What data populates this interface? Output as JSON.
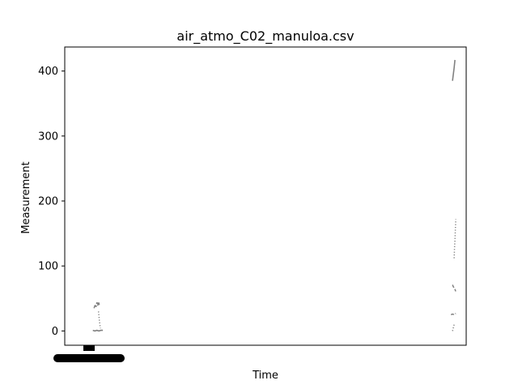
{
  "chart_data": {
    "type": "line",
    "title": "air_atmo_C02_manuloa.csv",
    "xlabel": "Time",
    "ylabel": "Measurement",
    "ylim": [
      -22,
      437
    ],
    "xlim": [
      0,
      1
    ],
    "y_ticks": [
      0,
      100,
      200,
      300,
      400
    ],
    "y_tick_labels": [
      "0",
      "100",
      "200",
      "300",
      "400"
    ],
    "grid": false,
    "legend": "none",
    "series_color": "#808080",
    "series": [
      {
        "x": [
          0.073,
          0.076,
          0.078,
          0.08,
          0.082,
          0.084,
          0.086
        ],
        "y": [
          35,
          41,
          37,
          44,
          39,
          45,
          40
        ],
        "style": "dashed"
      },
      {
        "x": [
          0.07,
          0.075,
          0.08,
          0.085,
          0.09,
          0.095
        ],
        "y": [
          1,
          0,
          1,
          0,
          1,
          1
        ],
        "style": "solid"
      },
      {
        "x": [
          0.084,
          0.085,
          0.086,
          0.087,
          0.088,
          0.089
        ],
        "y": [
          30,
          24,
          17,
          12,
          8,
          4
        ],
        "style": "dotted"
      },
      {
        "x": [
          0.966,
          0.968,
          0.97,
          0.972
        ],
        "y": [
          385,
          395,
          405,
          417
        ],
        "style": "solid"
      },
      {
        "x": [
          0.97,
          0.971,
          0.972,
          0.973,
          0.974
        ],
        "y": [
          112,
          128,
          140,
          155,
          172
        ],
        "style": "dotted"
      },
      {
        "x": [
          0.966,
          0.968,
          0.97,
          0.972,
          0.974
        ],
        "y": [
          71,
          68,
          66,
          64,
          61
        ],
        "style": "dashed"
      },
      {
        "x": [
          0.962,
          0.966,
          0.97,
          0.974
        ],
        "y": [
          25,
          26,
          25,
          27
        ],
        "style": "dashed"
      },
      {
        "x": [
          0.966,
          0.967,
          0.968,
          0.969,
          0.97,
          0.971
        ],
        "y": [
          0,
          2,
          5,
          7,
          10,
          12
        ],
        "style": "dotted"
      }
    ]
  }
}
